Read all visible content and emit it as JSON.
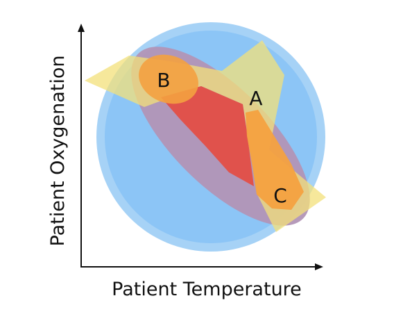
{
  "x_axis_label": "Patient Temperature",
  "y_axis_label": "Patient Oxygenation",
  "region_labels": [
    "A",
    "B",
    "C"
  ],
  "colors": {
    "outer_circle": "#a6d2f6",
    "inner_circle": "#8cc5f6",
    "purple_ellipse": "#b295b6",
    "yellow_region": "#f3e07a",
    "red_region": "#e0524c",
    "orange_region": "#f4a140",
    "axis": "#111111"
  }
}
